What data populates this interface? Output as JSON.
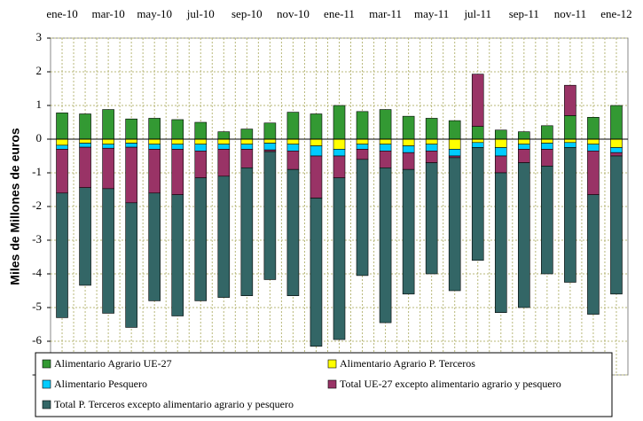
{
  "chart_data": {
    "type": "stacked_bar",
    "y_label": "Miles de Millones de euros",
    "categories": [
      "ene-10",
      null,
      "mar-10",
      null,
      "may-10",
      null,
      "jul-10",
      null,
      "sep-10",
      null,
      "nov-10",
      null,
      "ene-11",
      null,
      "mar-11",
      null,
      "may-11",
      null,
      "jul-11",
      null,
      "sep-11",
      null,
      "nov-11",
      null,
      "ene-12"
    ],
    "series": [
      {
        "name": "Alimentario Agrario UE-27",
        "color": "#339933",
        "values": [
          0.78,
          0.75,
          0.88,
          0.6,
          0.62,
          0.58,
          0.5,
          0.22,
          0.3,
          0.48,
          0.8,
          0.75,
          1.0,
          0.82,
          0.88,
          0.68,
          0.62,
          0.55,
          0.38,
          0.27,
          0.22,
          0.4,
          0.7,
          0.65,
          1.0
        ]
      },
      {
        "name": "Alimentario Agrario P. Terceros",
        "color": "#ffff00",
        "values": [
          -0.18,
          -0.12,
          -0.15,
          -0.12,
          -0.15,
          -0.15,
          -0.15,
          -0.15,
          -0.15,
          -0.12,
          -0.15,
          -0.2,
          -0.3,
          -0.15,
          -0.15,
          -0.2,
          -0.15,
          -0.3,
          -0.1,
          -0.25,
          -0.15,
          -0.12,
          -0.1,
          -0.15,
          -0.25
        ]
      },
      {
        "name": "Alimentario Pesquero",
        "color": "#00ccff",
        "values": [
          -0.12,
          -0.12,
          -0.12,
          -0.12,
          -0.15,
          -0.15,
          -0.2,
          -0.15,
          -0.15,
          -0.2,
          -0.2,
          -0.3,
          -0.2,
          -0.15,
          -0.2,
          -0.2,
          -0.2,
          -0.2,
          -0.15,
          -0.25,
          -0.15,
          -0.18,
          -0.15,
          -0.2,
          -0.15
        ]
      },
      {
        "name": "Total UE-27 excepto alimentario agrario y pesquero",
        "color": "#993366",
        "values": [
          -1.3,
          -1.2,
          -1.2,
          -1.65,
          -1.3,
          -1.35,
          -0.8,
          -0.8,
          -0.55,
          -0.05,
          -0.55,
          -1.25,
          -0.65,
          -0.3,
          -0.5,
          -0.5,
          -0.35,
          -0.05,
          1.55,
          -0.5,
          -0.4,
          -0.5,
          0.9,
          -1.3,
          -0.1
        ]
      },
      {
        "name": "Total P. Terceros excepto alimentario agrario y pesquero",
        "color": "#336666",
        "values": [
          -3.7,
          -2.9,
          -3.7,
          -3.7,
          -3.2,
          -3.6,
          -3.65,
          -3.6,
          -3.8,
          -3.8,
          -3.75,
          -4.4,
          -4.8,
          -3.45,
          -4.6,
          -3.7,
          -3.3,
          -3.95,
          -3.35,
          -4.15,
          -4.3,
          -3.2,
          -4.0,
          -3.55,
          -4.1
        ]
      }
    ],
    "ylim": [
      -7,
      3
    ],
    "yticks": [
      -7,
      -6,
      -5,
      -4,
      -3,
      -2,
      -1,
      0,
      1,
      2,
      3
    ],
    "grid": true
  }
}
